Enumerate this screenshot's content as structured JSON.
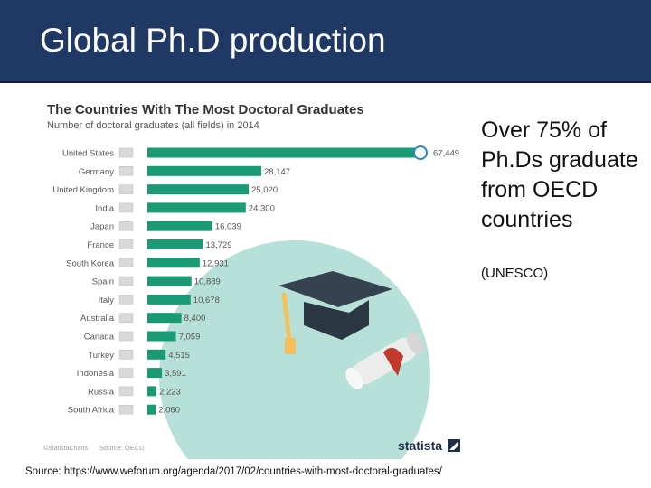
{
  "slide": {
    "title": "Global Ph.D production",
    "side_text": "Over 75% of Ph.Ds graduate from OECD countries",
    "side_note": "(UNESCO)",
    "source_line": "Source: https://www.weforum.org/agenda/2017/02/countries-with-most-doctoral-graduates/"
  },
  "chart_meta": {
    "copyright": "©StatistaCharts",
    "source": "Source: OECD",
    "brand": "statista"
  },
  "colors": {
    "title_bar": "#1f3864",
    "bar": "#1a9b76",
    "circle": "#b7e1d8",
    "chart_title": "#333333"
  },
  "chart_data": {
    "type": "bar",
    "orientation": "horizontal",
    "title": "The Countries With The Most Doctoral Graduates",
    "subtitle": "Number of doctoral graduates (all fields) in 2014",
    "categories": [
      "United States",
      "Germany",
      "United Kingdom",
      "India",
      "Japan",
      "France",
      "South Korea",
      "Spain",
      "Italy",
      "Australia",
      "Canada",
      "Turkey",
      "Indonesia",
      "Russia",
      "South Africa"
    ],
    "values": [
      67449,
      28147,
      25020,
      24300,
      16039,
      13729,
      12931,
      10889,
      10678,
      8400,
      7059,
      4515,
      3591,
      2223,
      2060
    ],
    "value_labels": [
      "67,449",
      "28,147",
      "25,020",
      "24,300",
      "16,039",
      "13,729",
      "12,931",
      "10,889",
      "10,678",
      "8,400",
      "7,059",
      "4,515",
      "3,591",
      "2,223",
      "2,060"
    ],
    "xlim": [
      0,
      67449
    ],
    "grid": false,
    "legend": "none"
  }
}
